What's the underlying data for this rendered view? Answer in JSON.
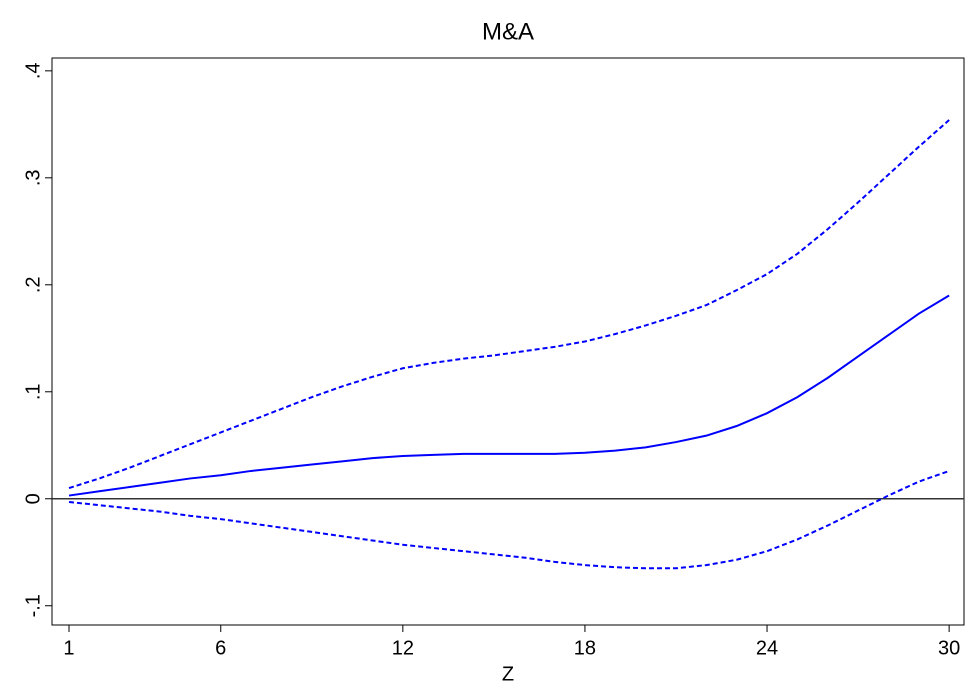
{
  "chart_data": {
    "type": "line",
    "title": "M&A",
    "x_label": "Z",
    "x": [
      1,
      2,
      3,
      4,
      5,
      6,
      7,
      8,
      9,
      10,
      11,
      12,
      13,
      14,
      15,
      16,
      17,
      18,
      19,
      20,
      21,
      22,
      23,
      24,
      25,
      26,
      27,
      28,
      29,
      30
    ],
    "series": [
      {
        "color": "#0000ff",
        "dash": false,
        "values": [
          0.003,
          0.007,
          0.011,
          0.015,
          0.019,
          0.022,
          0.026,
          0.029,
          0.032,
          0.035,
          0.038,
          0.04,
          0.041,
          0.042,
          0.042,
          0.042,
          0.042,
          0.043,
          0.045,
          0.048,
          0.053,
          0.059,
          0.068,
          0.08,
          0.095,
          0.113,
          0.133,
          0.153,
          0.173,
          0.19
        ]
      },
      {
        "color": "#0000ff",
        "dash": true,
        "values": [
          0.01,
          0.019,
          0.029,
          0.04,
          0.051,
          0.062,
          0.073,
          0.084,
          0.095,
          0.105,
          0.114,
          0.122,
          0.127,
          0.131,
          0.134,
          0.138,
          0.142,
          0.147,
          0.154,
          0.162,
          0.171,
          0.181,
          0.195,
          0.21,
          0.229,
          0.252,
          0.277,
          0.303,
          0.329,
          0.354
        ]
      },
      {
        "color": "#0000ff",
        "dash": true,
        "values": [
          -0.003,
          -0.006,
          -0.009,
          -0.012,
          -0.016,
          -0.019,
          -0.023,
          -0.027,
          -0.031,
          -0.035,
          -0.039,
          -0.043,
          -0.046,
          -0.049,
          -0.052,
          -0.055,
          -0.059,
          -0.062,
          -0.064,
          -0.065,
          -0.065,
          -0.062,
          -0.057,
          -0.049,
          -0.038,
          -0.025,
          -0.011,
          0.003,
          0.016,
          0.026
        ]
      }
    ],
    "xlim": [
      0.44,
      30.49
    ],
    "xticks": [
      1,
      6,
      12,
      18,
      24,
      30
    ],
    "ylim": [
      -0.118,
      0.412
    ],
    "yticks": [
      {
        "value": -0.1,
        "label": "-.1"
      },
      0,
      {
        "value": 0.1,
        "label": ".1"
      },
      {
        "value": 0.2,
        "label": ".2"
      },
      {
        "value": 0.3,
        "label": ".3"
      },
      {
        "value": 0.4,
        "label": ".4"
      }
    ],
    "reference_line": 0,
    "grid": false
  }
}
